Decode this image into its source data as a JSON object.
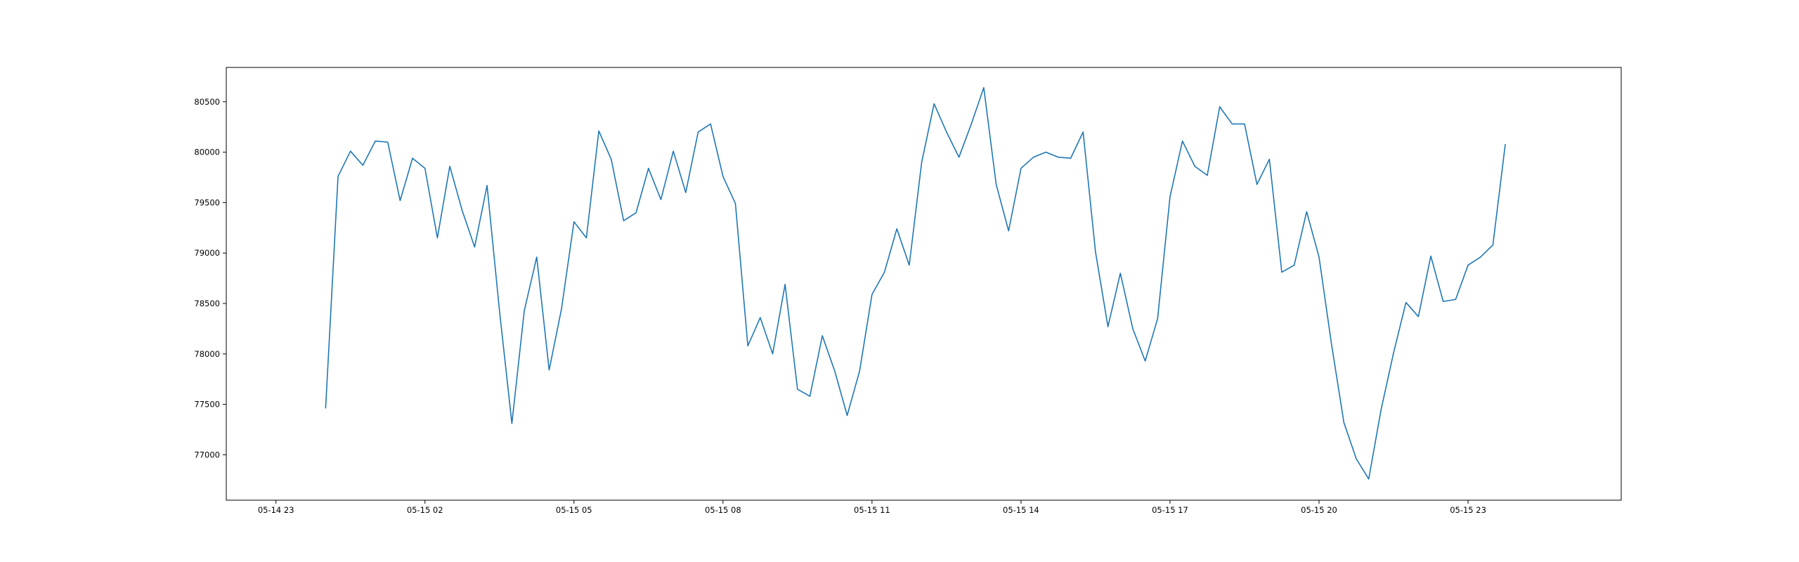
{
  "chart_data": {
    "type": "line",
    "title": "",
    "xlabel": "",
    "ylabel": "",
    "grid": false,
    "legend": "none",
    "line_color": "#1f77b4",
    "xlim": [
      "2024-05-14 22:00",
      "2024-05-16 02:05"
    ],
    "ylim": [
      76550,
      80840
    ],
    "x_ticks": [
      {
        "value": "2024-05-14 23:00",
        "label": "05-14 23"
      },
      {
        "value": "2024-05-15 02:00",
        "label": "05-15 02"
      },
      {
        "value": "2024-05-15 05:00",
        "label": "05-15 05"
      },
      {
        "value": "2024-05-15 08:00",
        "label": "05-15 08"
      },
      {
        "value": "2024-05-15 11:00",
        "label": "05-15 11"
      },
      {
        "value": "2024-05-15 14:00",
        "label": "05-15 14"
      },
      {
        "value": "2024-05-15 17:00",
        "label": "05-15 17"
      },
      {
        "value": "2024-05-15 20:00",
        "label": "05-15 20"
      },
      {
        "value": "2024-05-15 23:00",
        "label": "05-15 23"
      }
    ],
    "y_ticks": [
      {
        "value": 77000,
        "label": "77000"
      },
      {
        "value": 77500,
        "label": "77500"
      },
      {
        "value": 78000,
        "label": "78000"
      },
      {
        "value": 78500,
        "label": "78500"
      },
      {
        "value": 79000,
        "label": "79000"
      },
      {
        "value": 79500,
        "label": "79500"
      },
      {
        "value": 80000,
        "label": "80000"
      },
      {
        "value": 80500,
        "label": "80500"
      }
    ],
    "series": [
      {
        "x_start": "2024-05-15 00:00",
        "x_interval_minutes": 15,
        "values": [
          77460,
          79760,
          80010,
          79870,
          80110,
          80100,
          79520,
          79940,
          79840,
          79150,
          79860,
          79420,
          79060,
          79670,
          78430,
          77310,
          78430,
          78960,
          77840,
          78450,
          79310,
          79150,
          80210,
          79930,
          79320,
          79400,
          79840,
          79530,
          80010,
          79600,
          80200,
          80280,
          79760,
          79490,
          78080,
          78360,
          78000,
          78690,
          77650,
          77580,
          78180,
          77830,
          77390,
          77830,
          78590,
          78810,
          79240,
          78880,
          79900,
          80480,
          80200,
          79950,
          80280,
          80640,
          79680,
          79220,
          79840,
          79950,
          80000,
          79950,
          79940,
          80200,
          79010,
          78270,
          78800,
          78250,
          77930,
          78350,
          79560,
          80110,
          79860,
          79770,
          80450,
          80280,
          80280,
          79680,
          79930,
          78810,
          78880,
          79410,
          78960,
          78100,
          77320,
          76960,
          76760,
          77450,
          78010,
          78510,
          78370,
          78970,
          78520,
          78540,
          78880,
          78960,
          79080,
          80080
        ]
      }
    ]
  }
}
